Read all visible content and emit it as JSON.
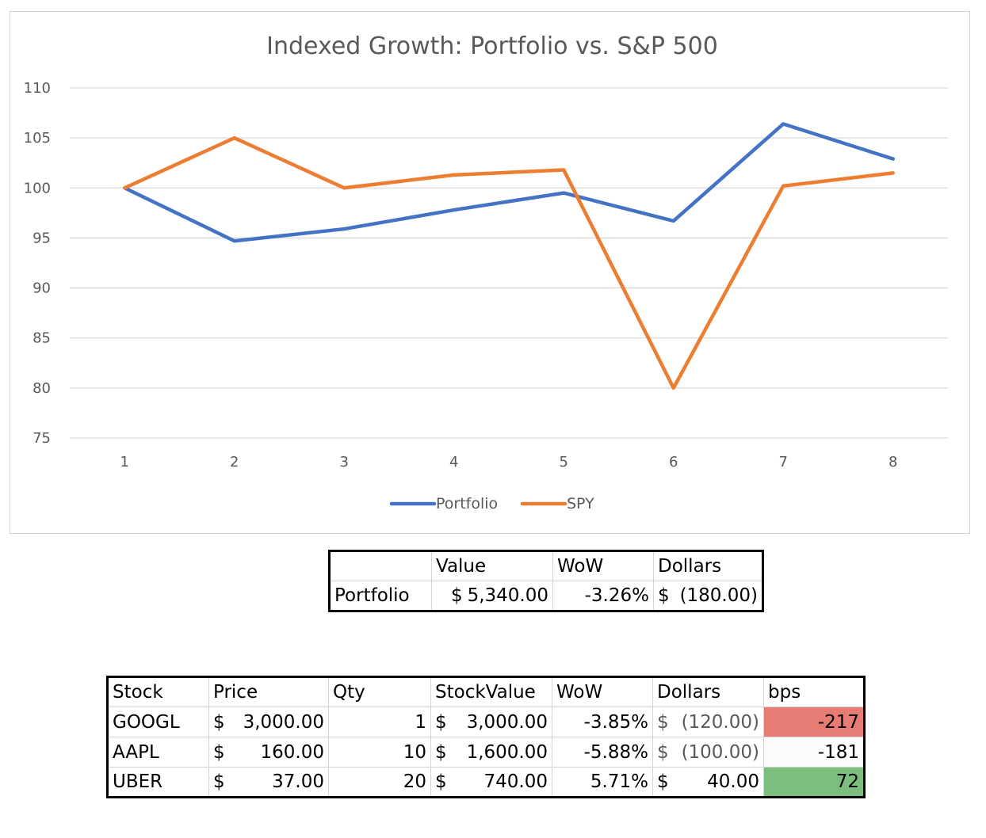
{
  "chart_data": {
    "type": "line",
    "title": "Indexed Growth: Portfolio vs. S&P 500",
    "x": [
      "1",
      "2",
      "3",
      "4",
      "5",
      "6",
      "7",
      "8"
    ],
    "ylim": [
      75,
      110
    ],
    "yticks": [
      "110",
      "105",
      "100",
      "95",
      "90",
      "85",
      "80",
      "75"
    ],
    "grid": true,
    "legend_position": "bottom",
    "series": [
      {
        "name": "Portfolio",
        "color": "#4472C4",
        "values": [
          100,
          94.7,
          95.9,
          97.8,
          99.5,
          96.7,
          106.4,
          102.9
        ]
      },
      {
        "name": "SPY",
        "color": "#ED7D31",
        "values": [
          100,
          105,
          100,
          101.3,
          101.8,
          80,
          100.2,
          101.5
        ]
      }
    ]
  },
  "summary": {
    "headers": [
      "",
      "Value",
      "WoW",
      "Dollars"
    ],
    "row": {
      "label": "Portfolio",
      "value_sym": "$",
      "value": "5,340.00",
      "wow": "-3.26%",
      "dollars_sym": "$",
      "dollars": "(180.00)"
    }
  },
  "stocks": {
    "headers": [
      "Stock",
      "Price",
      "Qty",
      "StockValue",
      "WoW",
      "Dollars",
      "bps"
    ],
    "rows": [
      {
        "stock": "GOOGL",
        "price_sym": "$",
        "price": "3,000.00",
        "qty": "1",
        "value_sym": "$",
        "value": "3,000.00",
        "wow": "-3.85%",
        "dollars_sym": "$",
        "dollars": "(120.00)",
        "bps": "-217",
        "bps_color": "#E67C73"
      },
      {
        "stock": "AAPL",
        "price_sym": "$",
        "price": "160.00",
        "qty": "10",
        "value_sym": "$",
        "value": "1,600.00",
        "wow": "-5.88%",
        "dollars_sym": "$",
        "dollars": "(100.00)",
        "bps": "-181",
        "bps_color": "#FCFCFF"
      },
      {
        "stock": "UBER",
        "price_sym": "$",
        "price": "37.00",
        "qty": "20",
        "value_sym": "$",
        "value": "740.00",
        "wow": "5.71%",
        "dollars_sym": "$",
        "dollars": "40.00",
        "bps": "72",
        "bps_color": "#7BBE7E"
      }
    ]
  }
}
